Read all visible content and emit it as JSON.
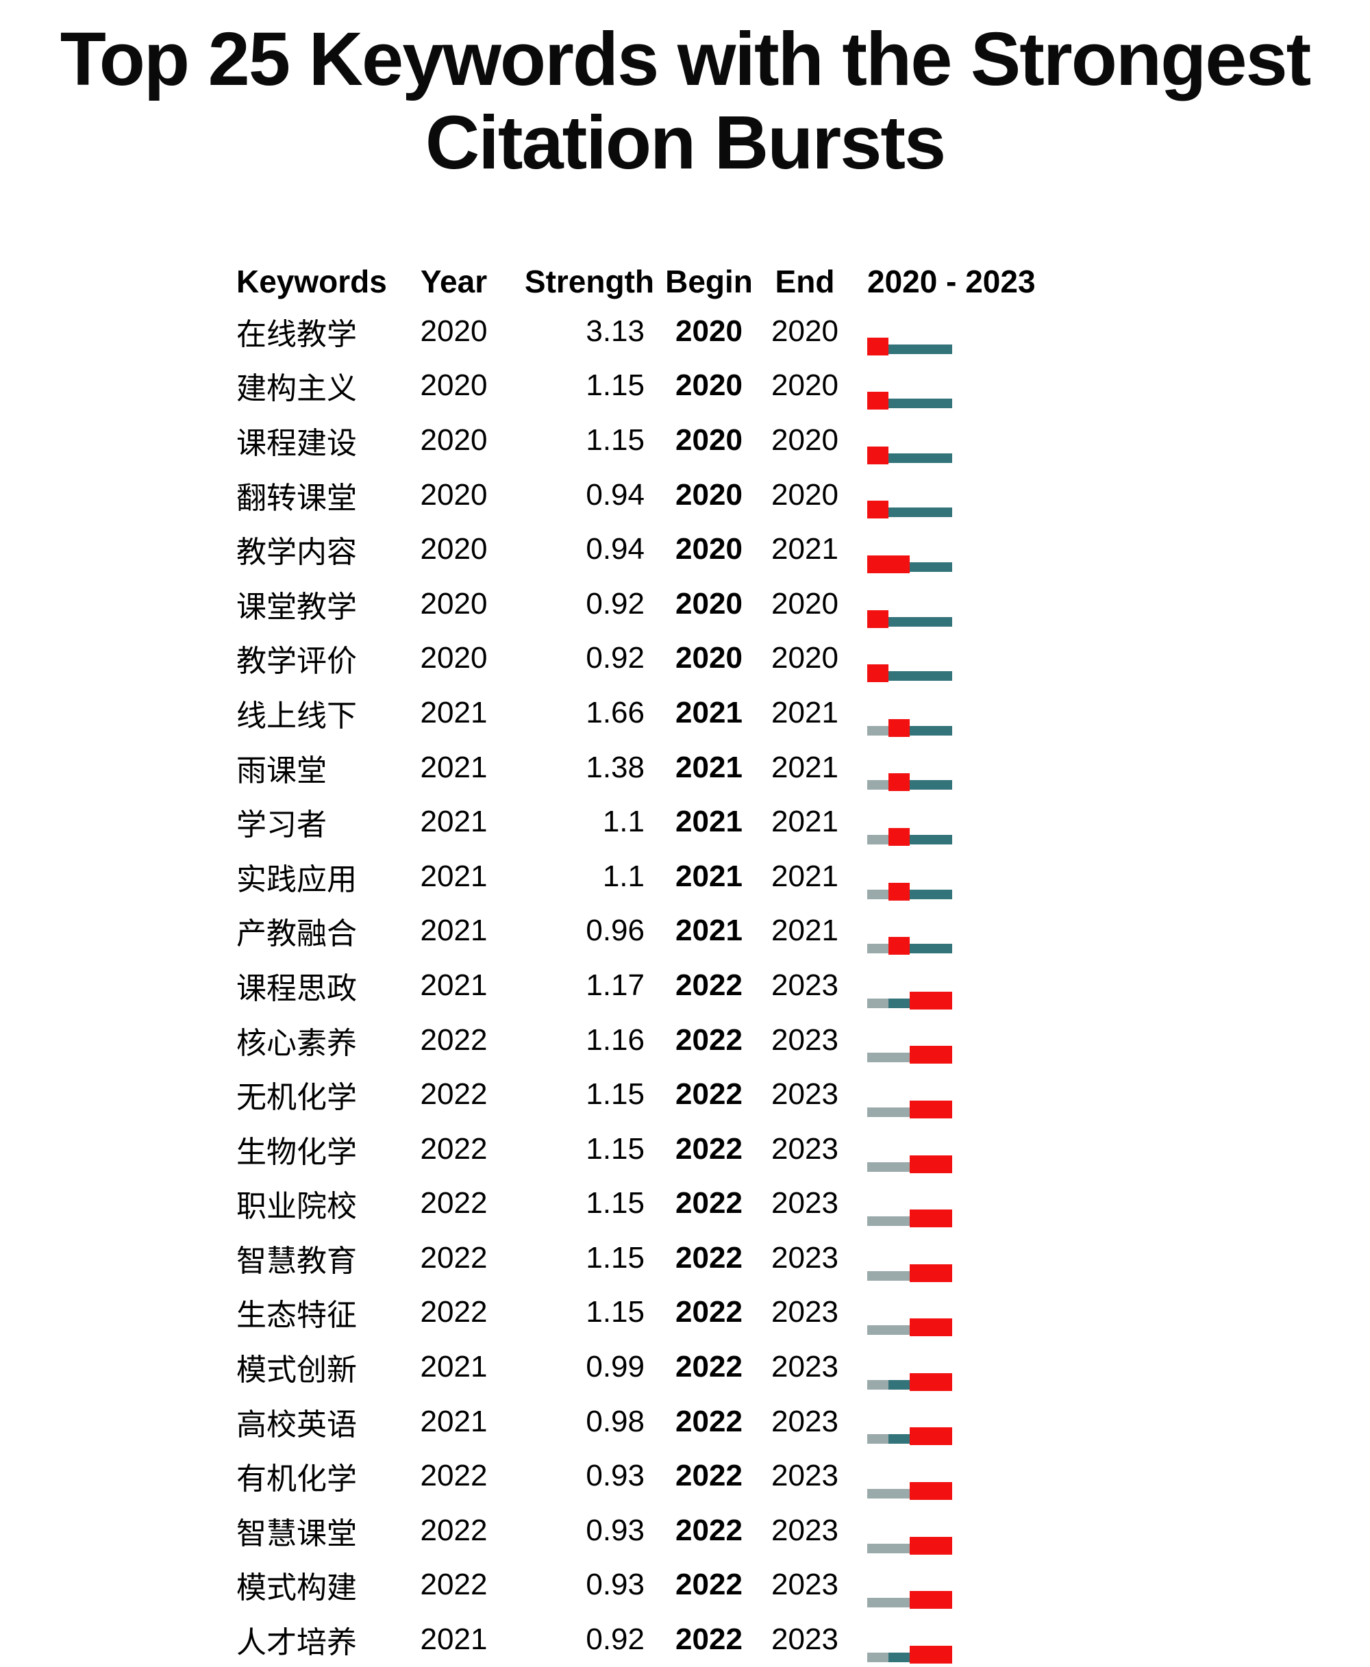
{
  "title": {
    "line1": "Top 25 Keywords with the Strongest",
    "line2": "Citation Bursts"
  },
  "table": {
    "headers": {
      "keywords": "Keywords",
      "year": "Year",
      "strength": "Strength",
      "begin": "Begin",
      "end": "End",
      "range": "2020 - 2023"
    },
    "colors": {
      "burst": "#f21010",
      "active": "#33737a",
      "inactive": "#9aa9a9"
    }
  },
  "chart_data": {
    "type": "table",
    "title": "Top 25 Keywords with the Strongest Citation Bursts",
    "columns": [
      "Keywords",
      "Year",
      "Strength",
      "Begin",
      "End",
      "2020 - 2023"
    ],
    "timeline": {
      "start": 2020,
      "end": 2023
    },
    "legend_colors": {
      "burst_period": "#f21010",
      "non_burst_after_first_appearance": "#33737a",
      "before_first_appearance": "#9aa9a9"
    },
    "rows": [
      {
        "keyword": "在线教学",
        "year": "2020",
        "strength": "3.13",
        "begin": "2020",
        "end": "2020"
      },
      {
        "keyword": "建构主义",
        "year": "2020",
        "strength": "1.15",
        "begin": "2020",
        "end": "2020"
      },
      {
        "keyword": "课程建设",
        "year": "2020",
        "strength": "1.15",
        "begin": "2020",
        "end": "2020"
      },
      {
        "keyword": "翻转课堂",
        "year": "2020",
        "strength": "0.94",
        "begin": "2020",
        "end": "2020"
      },
      {
        "keyword": "教学内容",
        "year": "2020",
        "strength": "0.94",
        "begin": "2020",
        "end": "2021"
      },
      {
        "keyword": "课堂教学",
        "year": "2020",
        "strength": "0.92",
        "begin": "2020",
        "end": "2020"
      },
      {
        "keyword": "教学评价",
        "year": "2020",
        "strength": "0.92",
        "begin": "2020",
        "end": "2020"
      },
      {
        "keyword": "线上线下",
        "year": "2021",
        "strength": "1.66",
        "begin": "2021",
        "end": "2021"
      },
      {
        "keyword": "雨课堂",
        "year": "2021",
        "strength": "1.38",
        "begin": "2021",
        "end": "2021"
      },
      {
        "keyword": "学习者",
        "year": "2021",
        "strength": "1.1",
        "begin": "2021",
        "end": "2021"
      },
      {
        "keyword": "实践应用",
        "year": "2021",
        "strength": "1.1",
        "begin": "2021",
        "end": "2021"
      },
      {
        "keyword": "产教融合",
        "year": "2021",
        "strength": "0.96",
        "begin": "2021",
        "end": "2021"
      },
      {
        "keyword": "课程思政",
        "year": "2021",
        "strength": "1.17",
        "begin": "2022",
        "end": "2023"
      },
      {
        "keyword": "核心素养",
        "year": "2022",
        "strength": "1.16",
        "begin": "2022",
        "end": "2023"
      },
      {
        "keyword": "无机化学",
        "year": "2022",
        "strength": "1.15",
        "begin": "2022",
        "end": "2023"
      },
      {
        "keyword": "生物化学",
        "year": "2022",
        "strength": "1.15",
        "begin": "2022",
        "end": "2023"
      },
      {
        "keyword": "职业院校",
        "year": "2022",
        "strength": "1.15",
        "begin": "2022",
        "end": "2023"
      },
      {
        "keyword": "智慧教育",
        "year": "2022",
        "strength": "1.15",
        "begin": "2022",
        "end": "2023"
      },
      {
        "keyword": "生态特征",
        "year": "2022",
        "strength": "1.15",
        "begin": "2022",
        "end": "2023"
      },
      {
        "keyword": "模式创新",
        "year": "2021",
        "strength": "0.99",
        "begin": "2022",
        "end": "2023"
      },
      {
        "keyword": "高校英语",
        "year": "2021",
        "strength": "0.98",
        "begin": "2022",
        "end": "2023"
      },
      {
        "keyword": "有机化学",
        "year": "2022",
        "strength": "0.93",
        "begin": "2022",
        "end": "2023"
      },
      {
        "keyword": "智慧课堂",
        "year": "2022",
        "strength": "0.93",
        "begin": "2022",
        "end": "2023"
      },
      {
        "keyword": "模式构建",
        "year": "2022",
        "strength": "0.93",
        "begin": "2022",
        "end": "2023"
      },
      {
        "keyword": "人才培养",
        "year": "2021",
        "strength": "0.92",
        "begin": "2022",
        "end": "2023"
      }
    ]
  }
}
